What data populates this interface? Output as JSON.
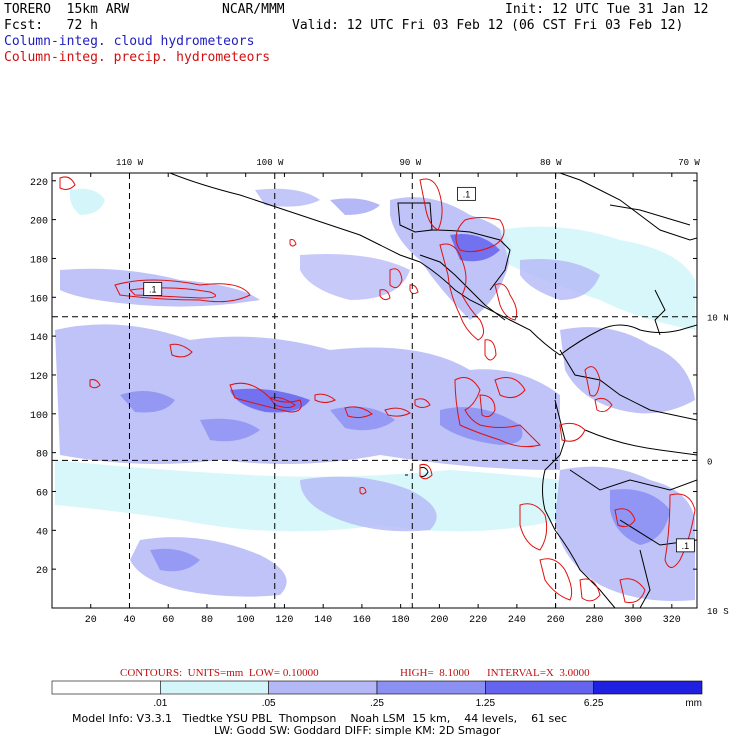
{
  "header": {
    "model": "TORERO  15km ARW",
    "org": "NCAR/MMM",
    "init": "Init: 12 UTC Tue 31 Jan 12",
    "fcst": "Fcst:   72 h",
    "valid": "Valid: 12 UTC Fri 03 Feb 12 (06 CST Fri 03 Feb 12)",
    "field1": "Column-integ. cloud hydrometeors",
    "field2": "Column-integ. precip. hydrometeors"
  },
  "colors": {
    "field1": "#2020c0",
    "field2": "#d01010",
    "cloud_levels": [
      "#ffffff",
      "#d4f6fa",
      "#b4b8f6",
      "#8c90f2",
      "#6464ee",
      "#2020e0"
    ],
    "precip_contour": "#e01010",
    "coast": "#000000"
  },
  "map": {
    "lon_labels": [
      {
        "lon": -110,
        "text": "110 W"
      },
      {
        "lon": -100,
        "text": "100 W"
      },
      {
        "lon": -90,
        "text": "90 W"
      },
      {
        "lon": -80,
        "text": "80 W"
      },
      {
        "lon": -70,
        "text": "70 W"
      }
    ],
    "lat_labels": [
      {
        "lat": 10,
        "text": "10 N"
      },
      {
        "lat": 0,
        "text": "0"
      },
      {
        "lat": -10,
        "text": "10 S"
      }
    ],
    "x_ticks": [
      20,
      40,
      60,
      80,
      100,
      120,
      140,
      160,
      180,
      200,
      220,
      240,
      260,
      280,
      300,
      320
    ],
    "y_ticks": [
      20,
      40,
      60,
      80,
      100,
      120,
      140,
      160,
      180,
      200,
      220
    ],
    "x_range": [
      0,
      333
    ],
    "y_range": [
      0,
      224
    ],
    "meridians_x": [
      40,
      115,
      186,
      260
    ],
    "parallels_y": [
      76,
      150
    ],
    "contour_labels": [
      {
        "x": 52,
        "y": 164,
        "text": ".1"
      },
      {
        "x": 214,
        "y": 213,
        "text": ".1"
      },
      {
        "x": 327,
        "y": 32,
        "text": ".1"
      }
    ]
  },
  "contour_note": {
    "prefix": "CONTOURS:  UNITS=mm  LOW= 0.10000",
    "high": "HIGH=  8.1000",
    "interval": "INTERVAL=X  3.0000"
  },
  "colorbar": {
    "labels": [
      ".01",
      ".05",
      ".25",
      "1.25",
      "6.25"
    ],
    "unit": "mm"
  },
  "footer": {
    "line1": "Model Info: V3.3.1   Tiedtke YSU PBL  Thompson    Noah LSM  15 km,    44 levels,    61 sec",
    "line2": "LW: Godd SW: Goddard DIFF: simple KM: 2D Smagor"
  }
}
